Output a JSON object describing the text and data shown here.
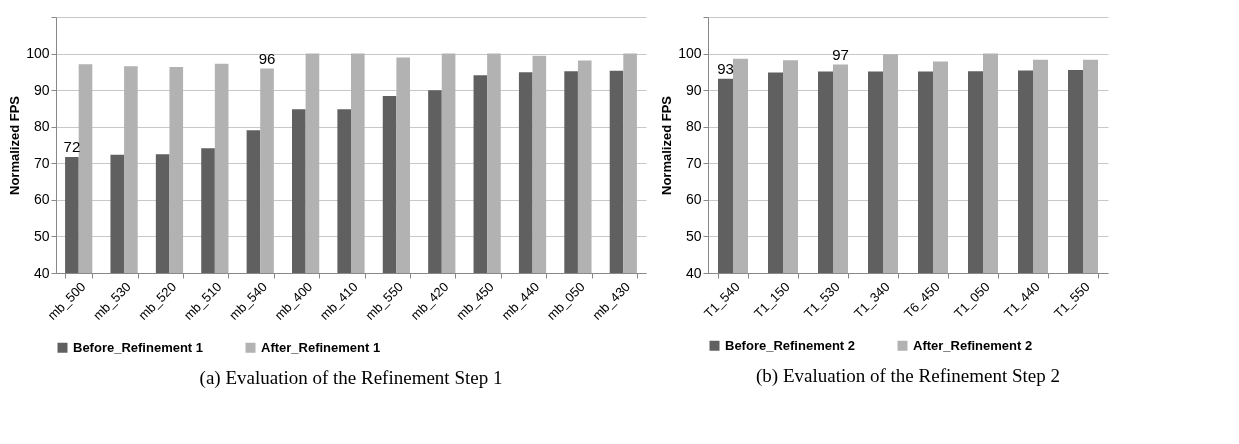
{
  "chart_data": [
    {
      "type": "bar",
      "title": "(a) Evaluation of the Refinement Step 1",
      "ylabel": "Normalized FPS",
      "categories": [
        "mb_500",
        "mb_530",
        "mb_520",
        "mb_510",
        "mb_540",
        "mb_400",
        "mb_410",
        "mb_550",
        "mb_420",
        "mb_450",
        "mb_440",
        "mb_050",
        "mb_430"
      ],
      "series": [
        {
          "name": "Before_Refinement 1",
          "color": "#606060",
          "values": [
            71.7,
            72.3,
            72.5,
            74.1,
            79,
            84.8,
            84.8,
            88.4,
            90,
            94.1,
            94.9,
            95.2,
            95.3
          ],
          "value_labels": [
            "72",
            null,
            null,
            null,
            null,
            null,
            null,
            null,
            null,
            null,
            null,
            null,
            null
          ]
        },
        {
          "name": "After_Refinement 1",
          "color": "#b2b2b2",
          "values": [
            97.1,
            96.5,
            96.3,
            97.2,
            95.9,
            100,
            100,
            98.9,
            100,
            100,
            99.4,
            98.1,
            100
          ],
          "value_labels": [
            null,
            null,
            null,
            null,
            "96",
            null,
            null,
            null,
            null,
            null,
            null,
            null,
            null
          ]
        }
      ],
      "ylim": [
        40,
        110
      ],
      "yticks": [
        40,
        50,
        60,
        70,
        80,
        90,
        100,
        {
          "value": 110,
          "label": null
        }
      ],
      "grid": "y",
      "legend": "bottom"
    },
    {
      "type": "bar",
      "title": "(b) Evaluation of the Refinement Step 2",
      "ylabel": "Normalized FPS",
      "categories": [
        "T1_540",
        "T1_150",
        "T1_530",
        "T1_340",
        "T6_450",
        "T1_050",
        "T1_440",
        "T1_550"
      ],
      "series": [
        {
          "name": "Before_Refinement 2",
          "color": "#606060",
          "values": [
            93.1,
            94.8,
            95.1,
            95.1,
            95.1,
            95.2,
            95.4,
            95.5
          ],
          "value_labels": [
            "93",
            null,
            null,
            null,
            null,
            null,
            null,
            null
          ]
        },
        {
          "name": "After_Refinement 2",
          "color": "#b2b2b2",
          "values": [
            98.6,
            98.2,
            97,
            99.8,
            97.8,
            100,
            98.3,
            98.3
          ],
          "value_labels": [
            null,
            null,
            "97",
            null,
            null,
            null,
            null,
            null
          ]
        }
      ],
      "ylim": [
        40,
        110
      ],
      "yticks": [
        40,
        50,
        60,
        70,
        80,
        90,
        100,
        {
          "value": 110,
          "label": null
        }
      ],
      "grid": "y",
      "legend": "bottom"
    }
  ]
}
